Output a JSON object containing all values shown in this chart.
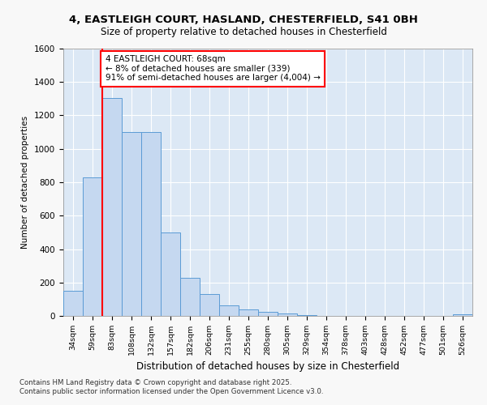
{
  "title_line1": "4, EASTLEIGH COURT, HASLAND, CHESTERFIELD, S41 0BH",
  "title_line2": "Size of property relative to detached houses in Chesterfield",
  "xlabel": "Distribution of detached houses by size in Chesterfield",
  "ylabel": "Number of detached properties",
  "categories": [
    "34sqm",
    "59sqm",
    "83sqm",
    "108sqm",
    "132sqm",
    "157sqm",
    "182sqm",
    "206sqm",
    "231sqm",
    "255sqm",
    "280sqm",
    "305sqm",
    "329sqm",
    "354sqm",
    "378sqm",
    "403sqm",
    "428sqm",
    "452sqm",
    "477sqm",
    "501sqm",
    "526sqm"
  ],
  "values": [
    150,
    830,
    1305,
    1100,
    1100,
    500,
    230,
    130,
    65,
    40,
    25,
    15,
    5,
    0,
    0,
    0,
    0,
    0,
    0,
    0,
    10
  ],
  "bar_color": "#c5d8f0",
  "bar_edge_color": "#5b9bd5",
  "red_line_x": 1.5,
  "ylim": [
    0,
    1600
  ],
  "yticks": [
    0,
    200,
    400,
    600,
    800,
    1000,
    1200,
    1400,
    1600
  ],
  "annotation_text": "4 EASTLEIGH COURT: 68sqm\n← 8% of detached houses are smaller (339)\n91% of semi-detached houses are larger (4,004) →",
  "footnote": "Contains HM Land Registry data © Crown copyright and database right 2025.\nContains public sector information licensed under the Open Government Licence v3.0.",
  "fig_background": "#f8f8f8",
  "plot_bg_color": "#dce8f5",
  "grid_color": "#ffffff"
}
